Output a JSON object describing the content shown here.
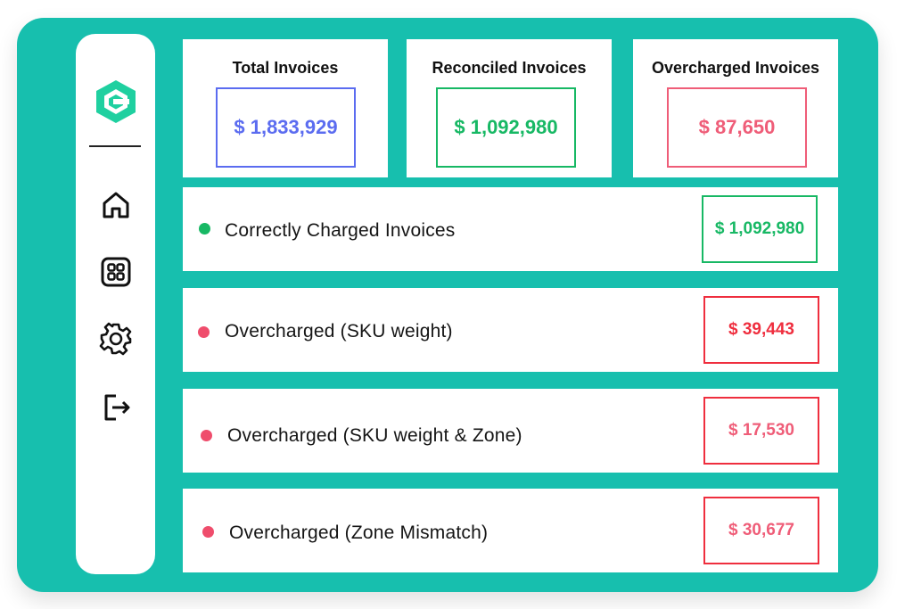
{
  "colors": {
    "panel_bg": "#17bfae",
    "blue": "#5b6cf0",
    "green": "#17b864",
    "pink": "#ef5d78",
    "red": "#ef2e3e",
    "logo": "#1fd0a0"
  },
  "sidebar": {
    "logo_icon": "hexagon-e-logo-icon",
    "items": [
      {
        "icon": "home-icon"
      },
      {
        "icon": "grid-icon"
      },
      {
        "icon": "gear-icon"
      },
      {
        "icon": "logout-icon"
      }
    ]
  },
  "summary": {
    "total": {
      "title": "Total Invoices",
      "value": "$ 1,833,929"
    },
    "reconciled": {
      "title": "Reconciled Invoices",
      "value": "$ 1,092,980"
    },
    "overcharged": {
      "title": "Overcharged Invoices",
      "value": "$ 87,650"
    }
  },
  "rows": [
    {
      "label": "Correctly Charged Invoices",
      "value": "$ 1,092,980",
      "status": "green"
    },
    {
      "label": "Overcharged (SKU weight)",
      "value": "$ 39,443",
      "status": "red"
    },
    {
      "label": "Overcharged (SKU weight & Zone)",
      "value": "$ 17,530",
      "status": "pink"
    },
    {
      "label": "Overcharged (Zone Mismatch)",
      "value": "$ 30,677",
      "status": "pink"
    }
  ]
}
